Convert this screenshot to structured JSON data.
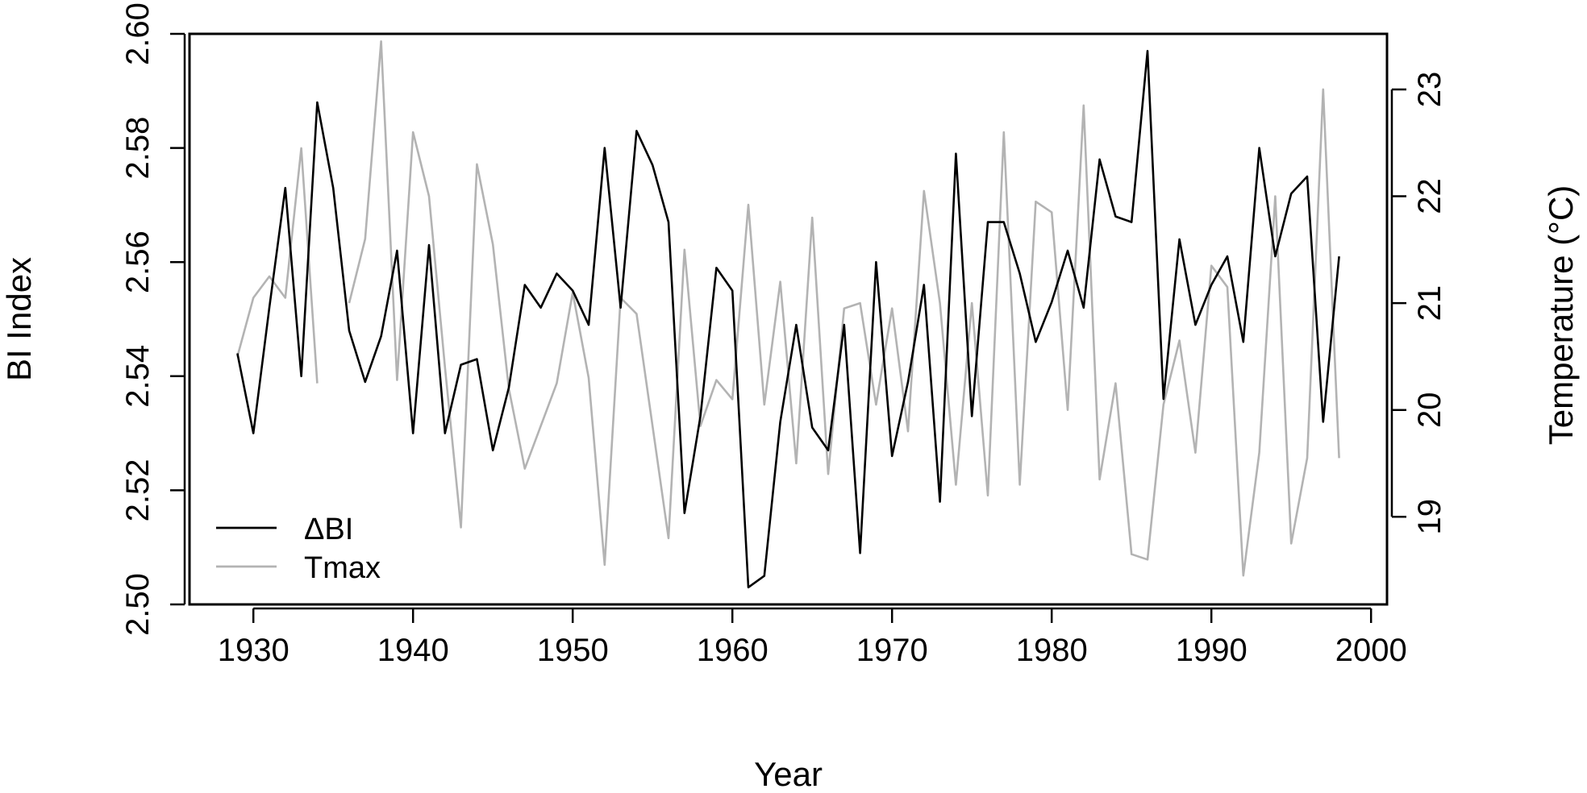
{
  "chart_data": {
    "type": "line",
    "title": "",
    "xlabel": "Year",
    "ylabel_left": "BI Index",
    "ylabel_right": "Temperature (°C)",
    "xlim": [
      1926,
      2001
    ],
    "x_ticks": [
      1930,
      1940,
      1950,
      1960,
      1970,
      1980,
      1990,
      2000
    ],
    "ylim_left": [
      2.5,
      2.6
    ],
    "y_ticks_left": [
      "2.50",
      "2.52",
      "2.54",
      "2.56",
      "2.58",
      "2.60"
    ],
    "ylim_right": [
      18.18,
      23.52
    ],
    "y_ticks_right": [
      "19",
      "20",
      "21",
      "22",
      "23"
    ],
    "grid": false,
    "legend": {
      "placement": "bottom-left"
    },
    "series": [
      {
        "name": "ΔBI",
        "axis": "left",
        "color": "#000000",
        "x": [
          1929,
          1930,
          1931,
          1932,
          1933,
          1934,
          1935,
          1936,
          1937,
          1938,
          1939,
          1940,
          1941,
          1942,
          1943,
          1944,
          1945,
          1946,
          1947,
          1948,
          1949,
          1950,
          1951,
          1952,
          1953,
          1954,
          1955,
          1956,
          1957,
          1958,
          1959,
          1960,
          1961,
          1962,
          1963,
          1964,
          1965,
          1966,
          1967,
          1968,
          1969,
          1970,
          1971,
          1972,
          1973,
          1974,
          1975,
          1976,
          1977,
          1978,
          1979,
          1980,
          1981,
          1982,
          1983,
          1984,
          1985,
          1986,
          1987,
          1988,
          1989,
          1990,
          1991,
          1992,
          1993,
          1994,
          1995,
          1996,
          1997,
          1998
        ],
        "values": [
          2.544,
          2.53,
          2.552,
          2.573,
          2.54,
          2.588,
          2.573,
          2.548,
          2.539,
          2.547,
          2.562,
          2.53,
          2.563,
          2.53,
          2.542,
          2.543,
          2.527,
          2.538,
          2.556,
          2.552,
          2.558,
          2.555,
          2.549,
          2.58,
          2.552,
          2.583,
          2.577,
          2.567,
          2.516,
          2.533,
          2.559,
          2.555,
          2.503,
          2.505,
          2.532,
          2.549,
          2.531,
          2.527,
          2.549,
          2.509,
          2.56,
          2.526,
          2.539,
          2.556,
          2.518,
          2.579,
          2.533,
          2.567,
          2.567,
          2.558,
          2.546,
          2.553,
          2.562,
          2.552,
          2.578,
          2.568,
          2.567,
          2.597,
          2.536,
          2.564,
          2.549,
          2.556,
          2.561,
          2.546,
          2.58,
          2.561,
          2.572,
          2.575,
          2.532,
          2.561
        ]
      },
      {
        "name": "Tmax",
        "axis": "right",
        "color": "#b3b3b3",
        "x": [
          1929,
          1930,
          1931,
          1932,
          1933,
          1934,
          1935,
          1936,
          1937,
          1938,
          1939,
          1940,
          1941,
          1942,
          1943,
          1944,
          1945,
          1946,
          1947,
          1948,
          1949,
          1950,
          1951,
          1952,
          1953,
          1954,
          1955,
          1956,
          1957,
          1958,
          1959,
          1960,
          1961,
          1962,
          1963,
          1964,
          1965,
          1966,
          1967,
          1968,
          1969,
          1970,
          1971,
          1972,
          1973,
          1974,
          1975,
          1976,
          1977,
          1978,
          1979,
          1980,
          1981,
          1982,
          1983,
          1984,
          1985,
          1986,
          1987,
          1988,
          1989,
          1990,
          1991,
          1992,
          1993,
          1994,
          1995,
          1996,
          1997,
          1998
        ],
        "values": [
          20.5,
          21.05,
          21.25,
          21.05,
          22.45,
          20.25,
          null,
          21.0,
          21.6,
          23.45,
          20.28,
          22.6,
          22.0,
          20.4,
          18.9,
          22.3,
          21.55,
          20.2,
          19.45,
          19.85,
          20.25,
          21.1,
          20.3,
          18.55,
          21.05,
          20.9,
          19.85,
          18.8,
          21.5,
          19.85,
          20.28,
          20.1,
          21.92,
          20.05,
          21.2,
          19.5,
          21.8,
          19.4,
          20.95,
          21.0,
          20.05,
          20.95,
          19.8,
          22.05,
          21.0,
          19.3,
          21.0,
          19.2,
          22.6,
          19.3,
          21.95,
          21.85,
          20.0,
          22.85,
          19.35,
          20.25,
          18.65,
          18.6,
          20.05,
          20.65,
          19.6,
          21.35,
          21.15,
          18.45,
          19.6,
          22.0,
          18.75,
          19.55,
          23.0,
          19.55
        ]
      }
    ]
  }
}
